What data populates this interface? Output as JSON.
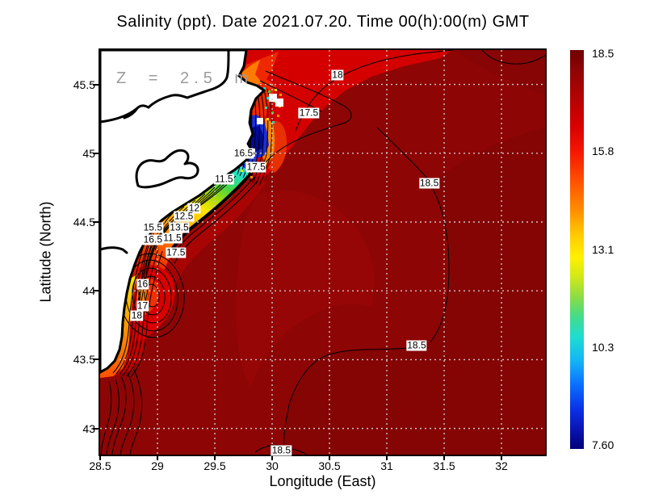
{
  "title": "Salinity (ppt). Date 2021.07.20. Time 00(h):00(m) GMT",
  "annotation": "Z = 2.5 m",
  "axes": {
    "x": {
      "label": "Longitude (East)"
    },
    "y": {
      "label": "Latitude (North)"
    }
  },
  "colorbar": {
    "labels": [
      "18.5",
      "15.8",
      "13.1",
      "10.3",
      "7.60"
    ]
  },
  "chart_data": {
    "type": "heatmap",
    "title": "Salinity (ppt). Date 2021.07.20. Time 00(h):00(m) GMT",
    "variable": "Salinity",
    "units": "ppt",
    "date": "2021.07.20",
    "time": "00(h):00(m) GMT",
    "depth_annotation": "Z = 2.5 m",
    "xlabel": "Longitude (East)",
    "ylabel": "Latitude (North)",
    "x_range": [
      28.5,
      32.38
    ],
    "y_range": [
      42.81,
      45.75
    ],
    "xticks": [
      28.5,
      29,
      29.5,
      30,
      30.5,
      31,
      31.5,
      32
    ],
    "yticks": [
      43,
      43.5,
      44,
      44.5,
      45,
      45.5
    ],
    "grid": true,
    "legend_position": "right-colorbar",
    "colorbar": {
      "min": 7.6,
      "max": 18.5,
      "tick_labels": [
        "18.5",
        "15.8",
        "13.1",
        "10.3",
        "7.60"
      ],
      "colormap": "jet"
    },
    "contour_interval": 0.5,
    "contour_labels": [
      {
        "value": "18",
        "lon": 30.57,
        "lat": 45.57
      },
      {
        "value": "17.5",
        "lon": 30.32,
        "lat": 45.29
      },
      {
        "value": "18.5",
        "lon": 31.37,
        "lat": 44.78
      },
      {
        "value": "18.5",
        "lon": 31.26,
        "lat": 43.6
      },
      {
        "value": "18.5",
        "lon": 30.08,
        "lat": 42.84
      },
      {
        "value": "11.5",
        "lon": 29.58,
        "lat": 44.81
      },
      {
        "value": "16.5",
        "lon": 29.75,
        "lat": 45.0
      },
      {
        "value": "17.5",
        "lon": 29.86,
        "lat": 44.9
      },
      {
        "value": "12",
        "lon": 29.32,
        "lat": 44.6
      },
      {
        "value": "12.5",
        "lon": 29.23,
        "lat": 44.54
      },
      {
        "value": "13.5",
        "lon": 29.19,
        "lat": 44.46
      },
      {
        "value": "15.5",
        "lon": 28.96,
        "lat": 44.46
      },
      {
        "value": "16.5",
        "lon": 28.96,
        "lat": 44.37
      },
      {
        "value": "11.5",
        "lon": 29.13,
        "lat": 44.38
      },
      {
        "value": "17.5",
        "lon": 29.16,
        "lat": 44.28
      },
      {
        "value": "16",
        "lon": 28.87,
        "lat": 44.05
      },
      {
        "value": "17",
        "lon": 28.87,
        "lat": 43.89
      },
      {
        "value": "18",
        "lon": 28.82,
        "lat": 43.82
      }
    ],
    "palette": {
      "sea_base": "#8e0505",
      "sea_dark": "#850404",
      "bright_red": "#d40000",
      "orange": "#ff7a00",
      "yellow": "#ffe400",
      "green": "#46d648",
      "cyan": "#20e0c8",
      "blue": "#1c2fd8",
      "navy": "#000a96",
      "land": "#ffffff",
      "coast": "#000000",
      "grid": "#c9c9c9"
    }
  }
}
